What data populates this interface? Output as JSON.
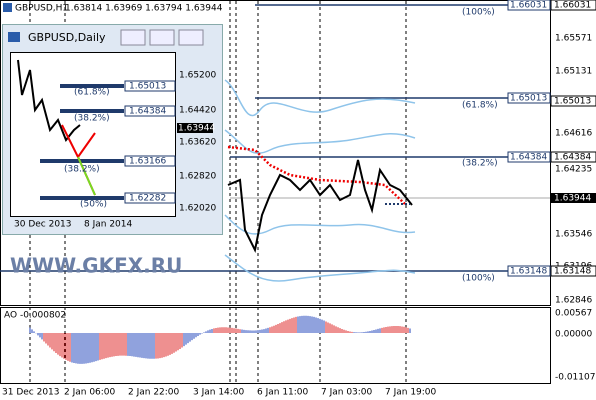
{
  "header": {
    "symbol": "GBPUSD,H1",
    "ohlc": "1.63814 1.63969 1.63794 1.63944"
  },
  "price_axis": {
    "labels": [
      "1.65571",
      "1.65131",
      "1.64616",
      "1.64235",
      "1.63546",
      "1.63196",
      "1.62846"
    ],
    "tags": [
      "1.66031",
      "1.65013",
      "1.64384",
      "1.63944",
      "1.63148"
    ]
  },
  "fib_labels": [
    "(100%)",
    "(61.8%)",
    "(38.2%)",
    "(100%)"
  ],
  "fib_tags": [
    "1.66031",
    "1.65013",
    "1.64384",
    "1.63148"
  ],
  "indicator": {
    "label": "AO -0.000802",
    "axis": [
      "0.00567",
      "0.00000",
      "-0.01107"
    ]
  },
  "time_axis": [
    "31 Dec 2013",
    "2 Jan 06:00",
    "2 Jan 22:00",
    "3 Jan 14:00",
    "6 Jan 11:00",
    "7 Jan 03:00",
    "7 Jan 19:00"
  ],
  "inset": {
    "title": "GBPUSD,Daily",
    "price_labels": [
      "1.65200",
      "1.64420",
      "1.63620",
      "1.62820",
      "1.62020"
    ],
    "tags": [
      "1.65013",
      "1.64384",
      "1.63944",
      "1.63166",
      "1.62282"
    ],
    "fib_labels": [
      "(61.8%)",
      "(38.2%)",
      "(38.2%)",
      "(50%)"
    ],
    "dates": [
      "30 Dec 2013",
      "8 Jan 2014"
    ]
  },
  "watermark": "WWW.GKFX.RU"
}
